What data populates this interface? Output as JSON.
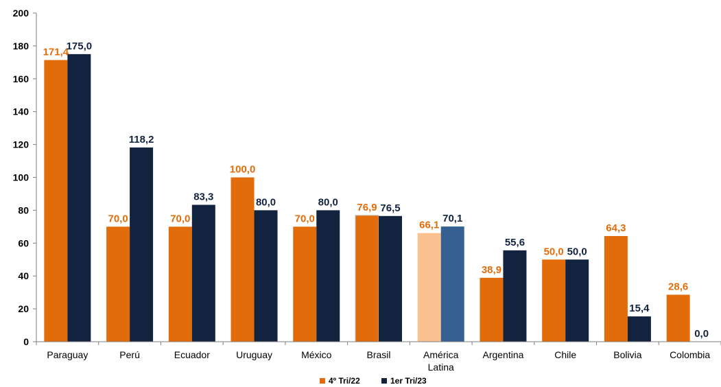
{
  "chart_data": {
    "type": "bar",
    "categories": [
      "Paraguay",
      "Perú",
      "Ecuador",
      "Uruguay",
      "México",
      "Brasil",
      "América Latina",
      "Argentina",
      "Chile",
      "Bolivia",
      "Colombia"
    ],
    "category_lines": [
      [
        "Paraguay"
      ],
      [
        "Perú"
      ],
      [
        "Ecuador"
      ],
      [
        "Uruguay"
      ],
      [
        "México"
      ],
      [
        "Brasil"
      ],
      [
        "América",
        "Latina"
      ],
      [
        "Argentina"
      ],
      [
        "Chile"
      ],
      [
        "Bolivia"
      ],
      [
        "Colombia"
      ]
    ],
    "series": [
      {
        "name": "4º Tri/22",
        "values": [
          171.4,
          70.0,
          70.0,
          100.0,
          70.0,
          76.9,
          66.1,
          38.9,
          50.0,
          64.3,
          28.6
        ],
        "labels": [
          "171,4",
          "70,0",
          "70,0",
          "100,0",
          "70,0",
          "76,9",
          "66,1",
          "38,9",
          "50,0",
          "64,3",
          "28,6"
        ],
        "color": "#E36C0A",
        "label_color": "#E36C0A",
        "highlight_color": "#FAC090"
      },
      {
        "name": "1er Tri/23",
        "values": [
          175.0,
          118.2,
          83.3,
          80.0,
          80.0,
          76.5,
          70.1,
          55.6,
          50.0,
          15.4,
          0.0
        ],
        "labels": [
          "175,0",
          "118,2",
          "83,3",
          "80,0",
          "80,0",
          "76,5",
          "70,1",
          "55,6",
          "50,0",
          "15,4",
          "0,0"
        ],
        "color": "#12233F",
        "label_color": "#12233F",
        "highlight_color": "#376092"
      }
    ],
    "highlight_category": "América Latina",
    "yticks": [
      "0",
      "20",
      "40",
      "60",
      "80",
      "100",
      "120",
      "140",
      "160",
      "180",
      "200"
    ],
    "ylim": [
      0,
      200
    ],
    "title": "",
    "xlabel": "",
    "ylabel": "",
    "grid": false,
    "legend_position": "bottom-center"
  }
}
